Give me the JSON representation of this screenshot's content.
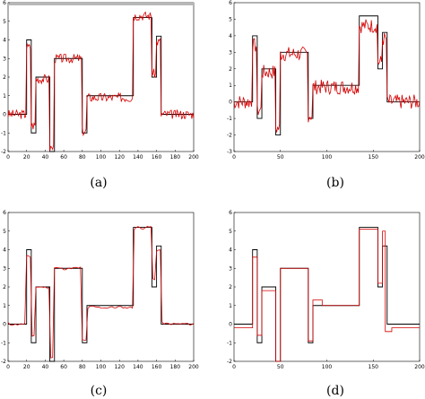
{
  "chart_data": [
    {
      "type": "line",
      "caption": "(a)",
      "xlim": [
        0,
        200
      ],
      "ylim": [
        -2,
        6
      ],
      "x_ticks": [
        "0",
        "20",
        "40",
        "60",
        "80",
        "100",
        "120",
        "140",
        "160",
        "180",
        "200"
      ],
      "y_ticks": [
        "-2",
        "-1",
        "0",
        "1",
        "2",
        "3",
        "4",
        "5",
        "6"
      ],
      "grid": false,
      "top_bar": true,
      "series": [
        {
          "color": "#000000",
          "style": "solid",
          "points": [
            [
              0,
              0
            ],
            [
              20,
              0
            ],
            [
              20,
              4
            ],
            [
              25,
              4
            ],
            [
              25,
              -1
            ],
            [
              30,
              -1
            ],
            [
              30,
              2
            ],
            [
              45,
              2
            ],
            [
              45,
              -2
            ],
            [
              50,
              -2
            ],
            [
              50,
              3
            ],
            [
              80,
              3
            ],
            [
              80,
              -1
            ],
            [
              85,
              -1
            ],
            [
              85,
              1
            ],
            [
              135,
              1
            ],
            [
              135,
              5.2
            ],
            [
              155,
              5.2
            ],
            [
              155,
              2
            ],
            [
              160,
              2
            ],
            [
              160,
              4.2
            ],
            [
              165,
              4.2
            ],
            [
              165,
              0
            ],
            [
              200,
              0
            ]
          ]
        },
        {
          "color": "#d40000",
          "style": "noisy",
          "amp": 0.25,
          "seed": 3,
          "points": [
            [
              0,
              0
            ],
            [
              20,
              0
            ],
            [
              20,
              3.6
            ],
            [
              25,
              3.6
            ],
            [
              25,
              -0.6
            ],
            [
              30,
              -0.6
            ],
            [
              30,
              1.9
            ],
            [
              45,
              1.9
            ],
            [
              45,
              -1.8
            ],
            [
              50,
              -1.8
            ],
            [
              50,
              3
            ],
            [
              80,
              3
            ],
            [
              80,
              -0.9
            ],
            [
              85,
              -0.9
            ],
            [
              85,
              0.9
            ],
            [
              135,
              0.9
            ],
            [
              135,
              5.3
            ],
            [
              155,
              5.3
            ],
            [
              155,
              2.2
            ],
            [
              160,
              2.2
            ],
            [
              160,
              3.9
            ],
            [
              165,
              3.9
            ],
            [
              165,
              0
            ],
            [
              200,
              0
            ]
          ]
        }
      ]
    },
    {
      "type": "line",
      "caption": "(b)",
      "xlim": [
        0,
        200
      ],
      "ylim": [
        -3,
        6
      ],
      "x_ticks": [
        "0",
        "50",
        "100",
        "150",
        "200"
      ],
      "y_ticks": [
        "-3",
        "-2",
        "-1",
        "0",
        "1",
        "2",
        "3",
        "4",
        "5",
        "6"
      ],
      "grid": false,
      "top_bar": false,
      "series": [
        {
          "color": "#000000",
          "style": "solid",
          "points": [
            [
              0,
              0
            ],
            [
              20,
              0
            ],
            [
              20,
              4
            ],
            [
              25,
              4
            ],
            [
              25,
              -1
            ],
            [
              30,
              -1
            ],
            [
              30,
              2
            ],
            [
              45,
              2
            ],
            [
              45,
              -2
            ],
            [
              50,
              -2
            ],
            [
              50,
              3
            ],
            [
              80,
              3
            ],
            [
              80,
              -1
            ],
            [
              85,
              -1
            ],
            [
              85,
              1
            ],
            [
              135,
              1
            ],
            [
              135,
              5.2
            ],
            [
              155,
              5.2
            ],
            [
              155,
              2
            ],
            [
              160,
              2
            ],
            [
              160,
              4.2
            ],
            [
              165,
              4.2
            ],
            [
              165,
              0
            ],
            [
              200,
              0
            ]
          ]
        },
        {
          "color": "#d40000",
          "style": "noisy",
          "amp": 0.45,
          "seed": 7,
          "points": [
            [
              0,
              0
            ],
            [
              20,
              0
            ],
            [
              20,
              3.4
            ],
            [
              25,
              3.4
            ],
            [
              25,
              -0.5
            ],
            [
              30,
              -0.5
            ],
            [
              30,
              1.8
            ],
            [
              45,
              1.8
            ],
            [
              45,
              -1.6
            ],
            [
              50,
              -1.6
            ],
            [
              50,
              2.9
            ],
            [
              80,
              2.9
            ],
            [
              80,
              -0.8
            ],
            [
              85,
              -0.8
            ],
            [
              85,
              0.9
            ],
            [
              135,
              0.9
            ],
            [
              135,
              4.6
            ],
            [
              155,
              4.6
            ],
            [
              155,
              2.4
            ],
            [
              160,
              2.4
            ],
            [
              160,
              3.8
            ],
            [
              165,
              3.8
            ],
            [
              165,
              0
            ],
            [
              200,
              0
            ]
          ]
        }
      ]
    },
    {
      "type": "line",
      "caption": "(c)",
      "xlim": [
        0,
        200
      ],
      "ylim": [
        -2,
        6
      ],
      "x_ticks": [
        "0",
        "20",
        "40",
        "60",
        "80",
        "100",
        "120",
        "140",
        "160",
        "180",
        "200"
      ],
      "y_ticks": [
        "-2",
        "-1",
        "0",
        "1",
        "2",
        "3",
        "4",
        "5",
        "6"
      ],
      "grid": false,
      "top_bar": false,
      "series": [
        {
          "color": "#000000",
          "style": "solid",
          "points": [
            [
              0,
              0
            ],
            [
              20,
              0
            ],
            [
              20,
              4
            ],
            [
              25,
              4
            ],
            [
              25,
              -1
            ],
            [
              30,
              -1
            ],
            [
              30,
              2
            ],
            [
              45,
              2
            ],
            [
              45,
              -2
            ],
            [
              50,
              -2
            ],
            [
              50,
              3
            ],
            [
              80,
              3
            ],
            [
              80,
              -1
            ],
            [
              85,
              -1
            ],
            [
              85,
              1
            ],
            [
              135,
              1
            ],
            [
              135,
              5.2
            ],
            [
              155,
              5.2
            ],
            [
              155,
              2
            ],
            [
              160,
              2
            ],
            [
              160,
              4.2
            ],
            [
              165,
              4.2
            ],
            [
              165,
              0
            ],
            [
              200,
              0
            ]
          ]
        },
        {
          "color": "#d40000",
          "style": "smooth",
          "amp": 0.12,
          "seed": 11,
          "points": [
            [
              0,
              0
            ],
            [
              20,
              0
            ],
            [
              20,
              3.6
            ],
            [
              25,
              3.6
            ],
            [
              25,
              -0.6
            ],
            [
              30,
              -0.6
            ],
            [
              30,
              2
            ],
            [
              45,
              2
            ],
            [
              45,
              -1.8
            ],
            [
              50,
              -1.8
            ],
            [
              50,
              3
            ],
            [
              80,
              3
            ],
            [
              80,
              -0.9
            ],
            [
              85,
              -0.9
            ],
            [
              85,
              0.9
            ],
            [
              135,
              0.9
            ],
            [
              135,
              5.2
            ],
            [
              155,
              5.2
            ],
            [
              155,
              2.4
            ],
            [
              160,
              2.4
            ],
            [
              160,
              4
            ],
            [
              165,
              4
            ],
            [
              165,
              0
            ],
            [
              200,
              0
            ]
          ]
        }
      ]
    },
    {
      "type": "line",
      "caption": "(d)",
      "xlim": [
        0,
        200
      ],
      "ylim": [
        -2,
        6
      ],
      "x_ticks": [
        "0",
        "50",
        "100",
        "150",
        "200"
      ],
      "y_ticks": [
        "-2",
        "-1",
        "0",
        "1",
        "2",
        "3",
        "4",
        "5",
        "6"
      ],
      "grid": false,
      "top_bar": false,
      "series": [
        {
          "color": "#000000",
          "style": "solid",
          "points": [
            [
              0,
              0
            ],
            [
              20,
              0
            ],
            [
              20,
              4
            ],
            [
              25,
              4
            ],
            [
              25,
              -1
            ],
            [
              30,
              -1
            ],
            [
              30,
              2
            ],
            [
              45,
              2
            ],
            [
              45,
              -2
            ],
            [
              50,
              -2
            ],
            [
              50,
              3
            ],
            [
              80,
              3
            ],
            [
              80,
              -1
            ],
            [
              85,
              -1
            ],
            [
              85,
              1
            ],
            [
              135,
              1
            ],
            [
              135,
              5.2
            ],
            [
              155,
              5.2
            ],
            [
              155,
              2
            ],
            [
              160,
              2
            ],
            [
              160,
              4.2
            ],
            [
              165,
              4.2
            ],
            [
              165,
              0
            ],
            [
              200,
              0
            ]
          ]
        },
        {
          "color": "#d40000",
          "style": "solid",
          "points": [
            [
              0,
              -0.2
            ],
            [
              20,
              -0.2
            ],
            [
              20,
              3.6
            ],
            [
              25,
              3.6
            ],
            [
              25,
              -0.6
            ],
            [
              30,
              -0.6
            ],
            [
              30,
              1.8
            ],
            [
              45,
              1.8
            ],
            [
              45,
              -2
            ],
            [
              50,
              -2
            ],
            [
              50,
              3
            ],
            [
              80,
              3
            ],
            [
              80,
              -0.9
            ],
            [
              85,
              -0.9
            ],
            [
              85,
              1.3
            ],
            [
              95,
              1.3
            ],
            [
              95,
              1
            ],
            [
              135,
              1
            ],
            [
              135,
              5.1
            ],
            [
              155,
              5.1
            ],
            [
              155,
              2.2
            ],
            [
              160,
              2.2
            ],
            [
              160,
              5
            ],
            [
              163,
              5
            ],
            [
              163,
              -0.4
            ],
            [
              170,
              -0.4
            ],
            [
              170,
              -0.2
            ],
            [
              200,
              -0.2
            ]
          ]
        }
      ]
    }
  ]
}
